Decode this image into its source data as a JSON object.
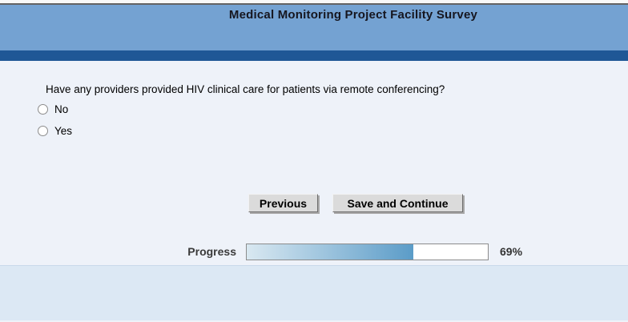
{
  "header": {
    "title": "Medical Monitoring Project Facility Survey"
  },
  "question": {
    "text": "Have any providers provided HIV clinical care for patients via remote conferencing?",
    "options": [
      {
        "label": "No",
        "selected": false
      },
      {
        "label": "Yes",
        "selected": false
      }
    ]
  },
  "buttons": {
    "previous_label": "Previous",
    "save_continue_label": "Save and Continue"
  },
  "progress": {
    "label": "Progress",
    "percent": 69,
    "percent_label": "69%"
  },
  "colors": {
    "header_blue": "#74a2d2",
    "divider_dark_blue": "#1f5796",
    "main_background": "#eef2f9",
    "footer_background": "#dce8f4",
    "progress_fill_start": "#d9e8f1",
    "progress_fill_end": "#5b9cc8"
  }
}
